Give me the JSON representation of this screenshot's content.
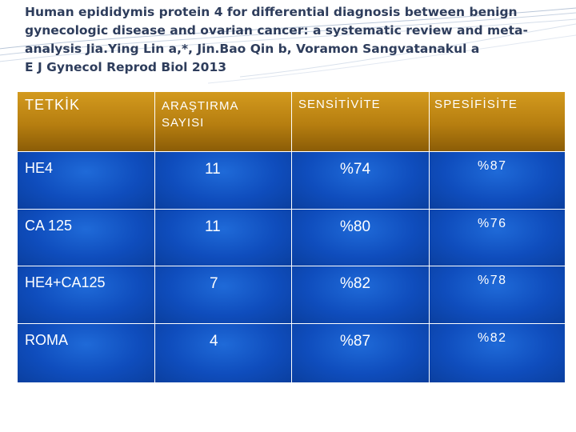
{
  "title": {
    "line1": "Human epididymis protein 4 for differential diagnosis between benign",
    "line2": "gynecologic disease and ovarian cancer: a systematic review and meta-",
    "line3": "analysis  Jia.Ying Lin a,*, Jin.Bao Qin b, Voramon Sangvatanakul a",
    "line4": "E J Gynecol Reprod Biol 2013"
  },
  "colors": {
    "title_text": "#2e3d5c",
    "header_gold": "#b67e10",
    "cell_blue": "#0f4dbd",
    "text_white": "#ffffff"
  },
  "table": {
    "headers": [
      "TETKİK",
      "ARAŞTIRMA SAYISI",
      "SENSİTİVİTE",
      "SPESİFİSİTE"
    ],
    "rows": [
      {
        "test": "HE4",
        "studies": "11",
        "sensitivity": "%74",
        "specificity": "%87"
      },
      {
        "test": "CA 125",
        "studies": "11",
        "sensitivity": "%80",
        "specificity": "%76"
      },
      {
        "test": "HE4+CA125",
        "studies": "7",
        "sensitivity": "%82",
        "specificity": "%78"
      },
      {
        "test": "ROMA",
        "studies": "4",
        "sensitivity": "%87",
        "specificity": "%82"
      }
    ]
  }
}
